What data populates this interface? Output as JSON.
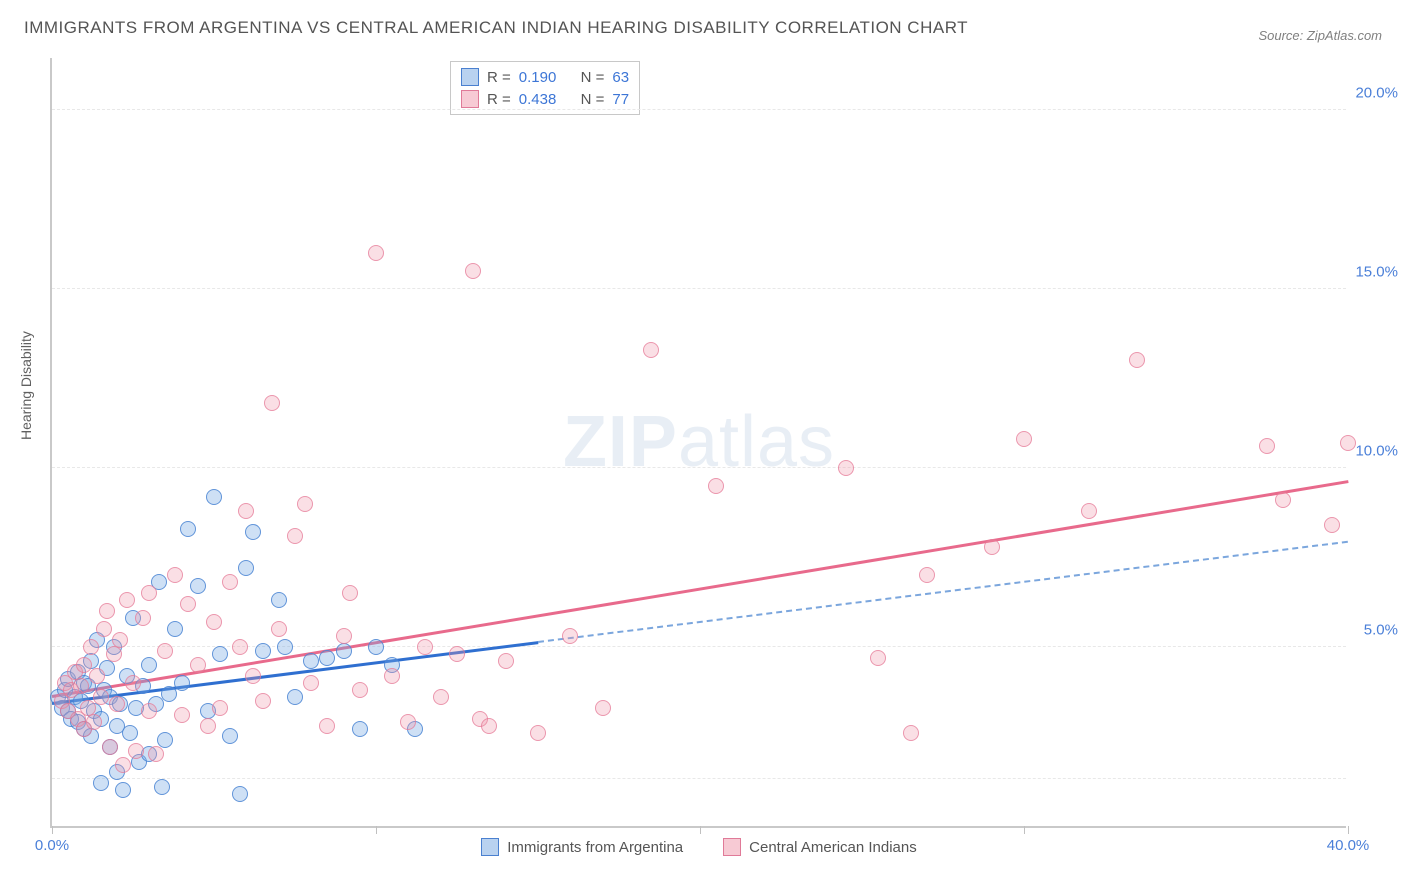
{
  "title": "IMMIGRANTS FROM ARGENTINA VS CENTRAL AMERICAN INDIAN HEARING DISABILITY CORRELATION CHART",
  "source": "Source: ZipAtlas.com",
  "ylabel": "Hearing Disability",
  "watermark_a": "ZIP",
  "watermark_b": "atlas",
  "chart": {
    "type": "scatter",
    "x_range": [
      0,
      40
    ],
    "y_range": [
      0,
      21.5
    ],
    "background_color": "#ffffff",
    "grid_color": "#e8e8e8",
    "axis_color": "#c9c9c9",
    "x_ticks": [
      0,
      10,
      20,
      30,
      40
    ],
    "x_tick_labels_shown": {
      "0": "0.0%",
      "40": "40.0%"
    },
    "y_gridlines": [
      1.3,
      5.0,
      10.0,
      15.0,
      20.0
    ],
    "y_tick_labels": {
      "5": "5.0%",
      "10": "10.0%",
      "15": "15.0%",
      "20": "20.0%"
    },
    "series": [
      {
        "name": "Immigrants from Argentina",
        "color_fill": "rgba(115,165,225,0.35)",
        "color_stroke": "#4a80d0",
        "marker_size": 16,
        "r": "0.190",
        "n": "63",
        "trend": {
          "x0": 0,
          "y0": 3.4,
          "x1_solid": 15,
          "y1_solid": 5.1,
          "x1_full": 40,
          "y1_full": 7.9,
          "color": "#2f6fd0",
          "dash_color": "#7ba6dd",
          "width": 2.5
        },
        "points": [
          [
            0.2,
            3.6
          ],
          [
            0.3,
            3.3
          ],
          [
            0.4,
            3.8
          ],
          [
            0.5,
            3.2
          ],
          [
            0.5,
            4.1
          ],
          [
            0.6,
            3.0
          ],
          [
            0.7,
            3.6
          ],
          [
            0.8,
            2.9
          ],
          [
            0.8,
            4.3
          ],
          [
            0.9,
            3.5
          ],
          [
            1.0,
            4.0
          ],
          [
            1.0,
            2.7
          ],
          [
            1.1,
            3.9
          ],
          [
            1.2,
            4.6
          ],
          [
            1.2,
            2.5
          ],
          [
            1.3,
            3.2
          ],
          [
            1.4,
            5.2
          ],
          [
            1.5,
            3.0
          ],
          [
            1.5,
            1.2
          ],
          [
            1.6,
            3.8
          ],
          [
            1.7,
            4.4
          ],
          [
            1.8,
            2.2
          ],
          [
            1.8,
            3.6
          ],
          [
            1.9,
            5.0
          ],
          [
            2.0,
            2.8
          ],
          [
            2.0,
            1.5
          ],
          [
            2.1,
            3.4
          ],
          [
            2.2,
            1.0
          ],
          [
            2.3,
            4.2
          ],
          [
            2.4,
            2.6
          ],
          [
            2.5,
            5.8
          ],
          [
            2.6,
            3.3
          ],
          [
            2.7,
            1.8
          ],
          [
            2.8,
            3.9
          ],
          [
            3.0,
            2.0
          ],
          [
            3.0,
            4.5
          ],
          [
            3.2,
            3.4
          ],
          [
            3.3,
            6.8
          ],
          [
            3.4,
            1.1
          ],
          [
            3.5,
            2.4
          ],
          [
            3.6,
            3.7
          ],
          [
            3.8,
            5.5
          ],
          [
            4.0,
            4.0
          ],
          [
            4.2,
            8.3
          ],
          [
            4.5,
            6.7
          ],
          [
            4.8,
            3.2
          ],
          [
            5.0,
            9.2
          ],
          [
            5.2,
            4.8
          ],
          [
            5.5,
            2.5
          ],
          [
            5.8,
            0.9
          ],
          [
            6.0,
            7.2
          ],
          [
            6.2,
            8.2
          ],
          [
            6.5,
            4.9
          ],
          [
            7.0,
            6.3
          ],
          [
            7.2,
            5.0
          ],
          [
            7.5,
            3.6
          ],
          [
            8.0,
            4.6
          ],
          [
            8.5,
            4.7
          ],
          [
            9.0,
            4.9
          ],
          [
            9.5,
            2.7
          ],
          [
            10.0,
            5.0
          ],
          [
            10.5,
            4.5
          ],
          [
            11.2,
            2.7
          ]
        ]
      },
      {
        "name": "Central American Indians",
        "color_fill": "rgba(240,150,170,0.3)",
        "color_stroke": "#e07a98",
        "marker_size": 16,
        "r": "0.438",
        "n": "77",
        "trend": {
          "x0": 0,
          "y0": 3.6,
          "x1_full": 40,
          "y1_full": 9.6,
          "color": "#e86a8c",
          "width": 2.5
        },
        "points": [
          [
            0.3,
            3.5
          ],
          [
            0.4,
            4.0
          ],
          [
            0.5,
            3.2
          ],
          [
            0.6,
            3.8
          ],
          [
            0.7,
            4.3
          ],
          [
            0.8,
            3.0
          ],
          [
            0.9,
            3.9
          ],
          [
            1.0,
            4.5
          ],
          [
            1.0,
            2.7
          ],
          [
            1.1,
            3.3
          ],
          [
            1.2,
            5.0
          ],
          [
            1.3,
            2.9
          ],
          [
            1.4,
            4.2
          ],
          [
            1.5,
            3.6
          ],
          [
            1.6,
            5.5
          ],
          [
            1.7,
            6.0
          ],
          [
            1.8,
            2.2
          ],
          [
            1.9,
            4.8
          ],
          [
            2.0,
            3.4
          ],
          [
            2.1,
            5.2
          ],
          [
            2.2,
            1.7
          ],
          [
            2.3,
            6.3
          ],
          [
            2.5,
            4.0
          ],
          [
            2.6,
            2.1
          ],
          [
            2.8,
            5.8
          ],
          [
            3.0,
            3.2
          ],
          [
            3.0,
            6.5
          ],
          [
            3.2,
            2.0
          ],
          [
            3.5,
            4.9
          ],
          [
            3.8,
            7.0
          ],
          [
            4.0,
            3.1
          ],
          [
            4.2,
            6.2
          ],
          [
            4.5,
            4.5
          ],
          [
            4.8,
            2.8
          ],
          [
            5.0,
            5.7
          ],
          [
            5.2,
            3.3
          ],
          [
            5.5,
            6.8
          ],
          [
            5.8,
            5.0
          ],
          [
            6.0,
            8.8
          ],
          [
            6.2,
            4.2
          ],
          [
            6.5,
            3.5
          ],
          [
            6.8,
            11.8
          ],
          [
            7.0,
            5.5
          ],
          [
            7.5,
            8.1
          ],
          [
            7.8,
            9.0
          ],
          [
            8.0,
            4.0
          ],
          [
            8.5,
            2.8
          ],
          [
            9.0,
            5.3
          ],
          [
            9.2,
            6.5
          ],
          [
            9.5,
            3.8
          ],
          [
            10.0,
            16.0
          ],
          [
            10.5,
            4.2
          ],
          [
            11.0,
            2.9
          ],
          [
            11.5,
            5.0
          ],
          [
            12.0,
            3.6
          ],
          [
            12.5,
            4.8
          ],
          [
            13.0,
            15.5
          ],
          [
            13.2,
            3.0
          ],
          [
            13.5,
            2.8
          ],
          [
            14.0,
            4.6
          ],
          [
            15.0,
            2.6
          ],
          [
            16.0,
            5.3
          ],
          [
            17.0,
            3.3
          ],
          [
            18.5,
            13.3
          ],
          [
            20.5,
            9.5
          ],
          [
            24.5,
            10.0
          ],
          [
            25.5,
            4.7
          ],
          [
            26.5,
            2.6
          ],
          [
            27.0,
            7.0
          ],
          [
            29.0,
            7.8
          ],
          [
            30.0,
            10.8
          ],
          [
            32.0,
            8.8
          ],
          [
            33.5,
            13.0
          ],
          [
            37.5,
            10.6
          ],
          [
            38.0,
            9.1
          ],
          [
            39.5,
            8.4
          ],
          [
            40.0,
            10.7
          ]
        ]
      }
    ]
  },
  "stats_labels": {
    "r": "R  =",
    "n": "N  ="
  },
  "legend": {
    "series1": "Immigrants from Argentina",
    "series2": "Central American Indians"
  }
}
